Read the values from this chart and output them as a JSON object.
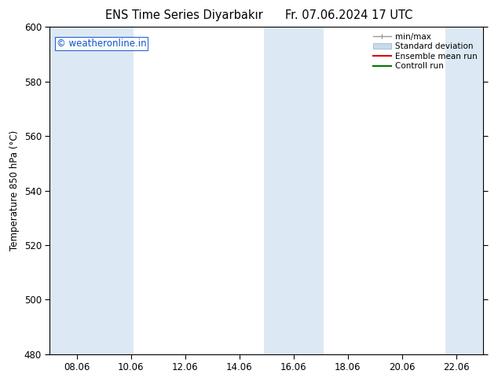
{
  "title_left": "ENS Time Series Diyarbakır",
  "title_right": "Fr. 07.06.2024 17 UTC",
  "ylabel": "Temperature 850 hPa (°C)",
  "watermark": "© weatheronline.in",
  "xtick_labels": [
    "08.06",
    "10.06",
    "12.06",
    "14.06",
    "16.06",
    "18.06",
    "20.06",
    "22.06"
  ],
  "ylim": [
    480,
    600
  ],
  "yticks": [
    480,
    500,
    520,
    540,
    560,
    580,
    600
  ],
  "shaded_color": "#dce9f5",
  "background_color": "#ffffff",
  "plot_bg_color": "#ffffff",
  "legend_items": [
    {
      "label": "min/max",
      "color": "#aaaaaa",
      "style": "minmax"
    },
    {
      "label": "Standard deviation",
      "color": "#c8daea",
      "style": "stddev"
    },
    {
      "label": "Ensemble mean run",
      "color": "#dd0000",
      "style": "line"
    },
    {
      "label": "Controll run",
      "color": "#007700",
      "style": "line"
    }
  ],
  "title_fontsize": 10.5,
  "tick_fontsize": 8.5,
  "ylabel_fontsize": 8.5,
  "watermark_fontsize": 8.5,
  "legend_fontsize": 7.5
}
